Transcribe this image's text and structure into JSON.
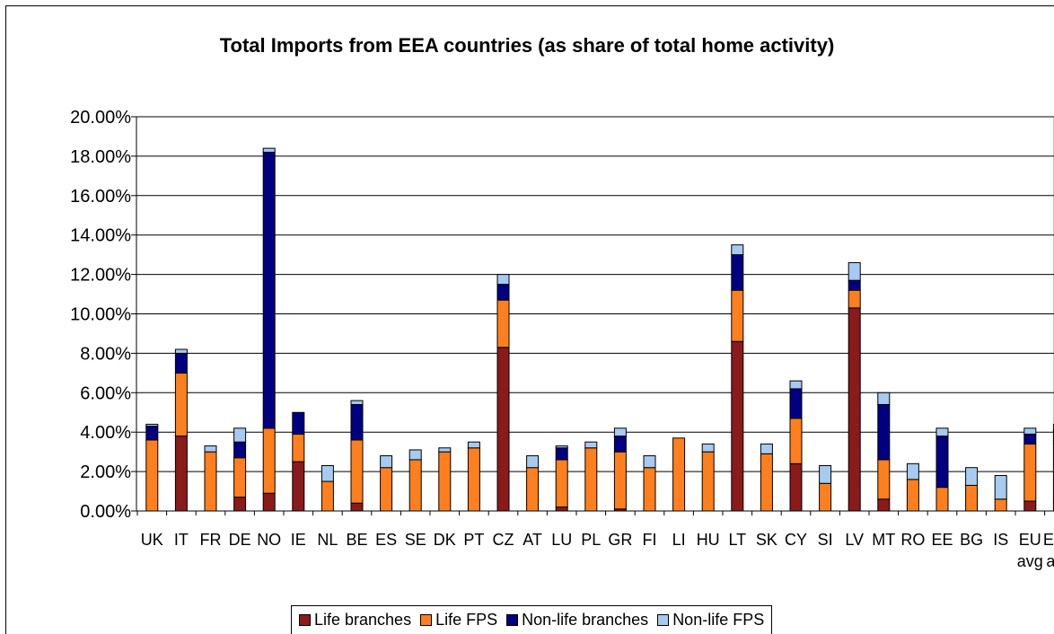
{
  "chart_data": {
    "type": "bar",
    "stacked": true,
    "title": "Total Imports from EEA countries (as share of total home activity)",
    "xlabel": "",
    "ylabel": "",
    "ylim": [
      0,
      20
    ],
    "yticks": [
      0,
      2,
      4,
      6,
      8,
      10,
      12,
      14,
      16,
      18,
      20
    ],
    "ytick_labels": [
      "0.00%",
      "2.00%",
      "4.00%",
      "6.00%",
      "8.00%",
      "10.00%",
      "12.00%",
      "14.00%",
      "16.00%",
      "18.00%",
      "20.00%"
    ],
    "grid": "horizontal",
    "legend_position": "bottom",
    "categories": [
      "UK",
      "IT",
      "FR",
      "DE",
      "NO",
      "IE",
      "NL",
      "BE",
      "ES",
      "SE",
      "DK",
      "PT",
      "CZ",
      "AT",
      "LU",
      "PL",
      "GR",
      "FI",
      "LI",
      "HU",
      "LT",
      "SK",
      "CY",
      "SI",
      "LV",
      "MT",
      "RO",
      "EE",
      "BG",
      "IS",
      "EU avg",
      "EEA avg"
    ],
    "category_labels": [
      [
        "UK"
      ],
      [
        "IT"
      ],
      [
        "FR"
      ],
      [
        "DE"
      ],
      [
        "NO"
      ],
      [
        "IE"
      ],
      [
        "NL"
      ],
      [
        "BE"
      ],
      [
        "ES"
      ],
      [
        "SE"
      ],
      [
        "DK"
      ],
      [
        "PT"
      ],
      [
        "CZ"
      ],
      [
        "AT"
      ],
      [
        "LU"
      ],
      [
        "PL"
      ],
      [
        "GR"
      ],
      [
        "FI"
      ],
      [
        "LI"
      ],
      [
        "HU"
      ],
      [
        "LT"
      ],
      [
        "SK"
      ],
      [
        "CY"
      ],
      [
        "SI"
      ],
      [
        "LV"
      ],
      [
        "MT"
      ],
      [
        "RO"
      ],
      [
        "EE"
      ],
      [
        "BG"
      ],
      [
        "IS"
      ],
      [
        "EU",
        "avg"
      ],
      [
        "EEA",
        "avg"
      ]
    ],
    "series": [
      {
        "name": "Life branches",
        "color": "#8B1A1A",
        "values": [
          0.0,
          3.8,
          0.0,
          0.7,
          0.9,
          2.5,
          0.0,
          0.4,
          0.0,
          0.0,
          0.0,
          0.0,
          8.3,
          0.0,
          0.2,
          0.0,
          0.1,
          0.0,
          0.0,
          0.0,
          8.6,
          0.0,
          2.4,
          0.0,
          10.3,
          0.6,
          0.0,
          0.0,
          0.0,
          0.0,
          0.5,
          0.5
        ]
      },
      {
        "name": "Life FPS",
        "color": "#FF7F1E",
        "values": [
          3.6,
          3.2,
          3.0,
          2.0,
          3.3,
          1.4,
          1.5,
          3.2,
          2.2,
          2.6,
          3.0,
          3.2,
          2.4,
          2.2,
          2.4,
          3.2,
          2.9,
          2.2,
          3.7,
          3.0,
          2.6,
          2.9,
          2.3,
          1.4,
          0.9,
          2.0,
          1.6,
          1.2,
          1.3,
          0.6,
          2.9,
          2.9
        ]
      },
      {
        "name": "Non-life branches",
        "color": "#000080",
        "values": [
          0.7,
          1.0,
          0.0,
          0.8,
          14.0,
          1.1,
          0.0,
          1.8,
          0.0,
          0.0,
          0.0,
          0.0,
          0.8,
          0.0,
          0.6,
          0.0,
          0.8,
          0.0,
          0.0,
          0.0,
          1.8,
          0.0,
          1.5,
          0.0,
          0.5,
          2.8,
          0.0,
          2.6,
          0.0,
          0.0,
          0.5,
          0.7
        ]
      },
      {
        "name": "Non-life FPS",
        "color": "#A6CAF0",
        "values": [
          0.1,
          0.2,
          0.3,
          0.7,
          0.2,
          0.0,
          0.8,
          0.2,
          0.6,
          0.5,
          0.2,
          0.3,
          0.5,
          0.6,
          0.1,
          0.3,
          0.4,
          0.6,
          0.0,
          0.4,
          0.5,
          0.5,
          0.4,
          0.9,
          0.9,
          0.6,
          0.8,
          0.4,
          0.9,
          1.2,
          0.3,
          0.3
        ]
      }
    ]
  }
}
